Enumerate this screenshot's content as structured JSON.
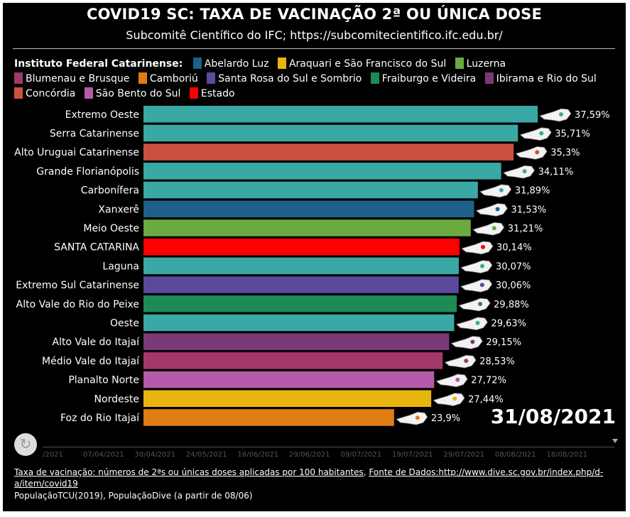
{
  "header": {
    "title": "COVID19 SC: TAXA DE VACINAÇÃO 2ª OU ÚNICA DOSE",
    "subtitle": "Subcomitê Científico do IFC; https://subcomitecientifico.ifc.edu.br/"
  },
  "legend": {
    "title": "Instituto Federal Catarinense:",
    "rows": [
      [
        {
          "label": "Abelardo Luz",
          "color": "#1f5f8b"
        },
        {
          "label": "Araquari e São Francisco do Sul",
          "color": "#e8b40f"
        },
        {
          "label": "Luzerna",
          "color": "#6aaa3f"
        }
      ],
      [
        {
          "label": "Blumenau e Brusque",
          "color": "#a3386b"
        },
        {
          "label": "Camboriú",
          "color": "#e07d13"
        },
        {
          "label": "Santa Rosa do Sul e Sombrio",
          "color": "#5b4a9b"
        },
        {
          "label": "Fraiburgo e Videira",
          "color": "#1e8a56"
        },
        {
          "label": "Ibirama e Rio do Sul",
          "color": "#7a3a78"
        }
      ],
      [
        {
          "label": "Concórdia",
          "color": "#cc5040"
        },
        {
          "label": "São Bento do Sul",
          "color": "#b55aa8"
        },
        {
          "label": "Estado",
          "color": "#ff0000"
        }
      ]
    ]
  },
  "chart_data": {
    "type": "bar",
    "orientation": "horizontal",
    "categories": [
      "Extremo Oeste",
      "Serra Catarinense",
      "Alto Uruguai Catarinense",
      "Grande Florianópolis",
      "Carbonífera",
      "Xanxerê",
      "Meio Oeste",
      "SANTA CATARINA",
      "Laguna",
      "Extremo Sul Catarinense",
      "Alto Vale do Rio do Peixe",
      "Oeste",
      "Alto Vale do Itajaí",
      "Médio Vale do Itajaí",
      "Planalto Norte",
      "Nordeste",
      "Foz do Rio Itajaí"
    ],
    "values": [
      37.59,
      35.71,
      35.3,
      34.11,
      31.89,
      31.53,
      31.21,
      30.14,
      30.07,
      30.06,
      29.88,
      29.63,
      29.15,
      28.53,
      27.72,
      27.44,
      23.9
    ],
    "value_labels": [
      "37,59%",
      "35,71%",
      "35,3%",
      "34,11%",
      "31,89%",
      "31,53%",
      "31,21%",
      "30,14%",
      "30,07%",
      "30,06%",
      "29,88%",
      "29,63%",
      "29,15%",
      "28,53%",
      "27,72%",
      "27,44%",
      "23,9%"
    ],
    "colors": [
      "#3aa8a4",
      "#3aa8a4",
      "#cc5040",
      "#3aa8a4",
      "#3aa8a4",
      "#1f5f8b",
      "#6aaa3f",
      "#ff0000",
      "#3aa8a4",
      "#5b4a9b",
      "#1e8a56",
      "#3aa8a4",
      "#7a3a78",
      "#a3386b",
      "#b55aa8",
      "#e8b40f",
      "#e07d13"
    ],
    "xlim": [
      0,
      37.59
    ],
    "date": "31/08/2021"
  },
  "timeline": {
    "ticks": [
      "07/04/2021",
      "30/04/2021",
      "24/05/2021",
      "16/06/2021",
      "29/06/2021",
      "09/07/2021",
      "19/07/2021",
      "29/07/2021",
      "08/08/2021",
      "18/08/2021"
    ],
    "partial_tick": "/2021"
  },
  "footer": {
    "line1": "Taxa de vacinação: números de 2ªs ou únicas doses aplicadas por 100 habitantes",
    "sep": ", ",
    "line1_source": "Fonte de Dados:http://www.dive.sc.gov.br/index.php/d-",
    "line2": "a/item/covid19",
    "line3": "PopulaçãoTCU(2019), PopulaçãoDive (a partir de 08/06)"
  },
  "icons": {
    "map": "sc-map-icon",
    "replay": "replay-icon"
  }
}
